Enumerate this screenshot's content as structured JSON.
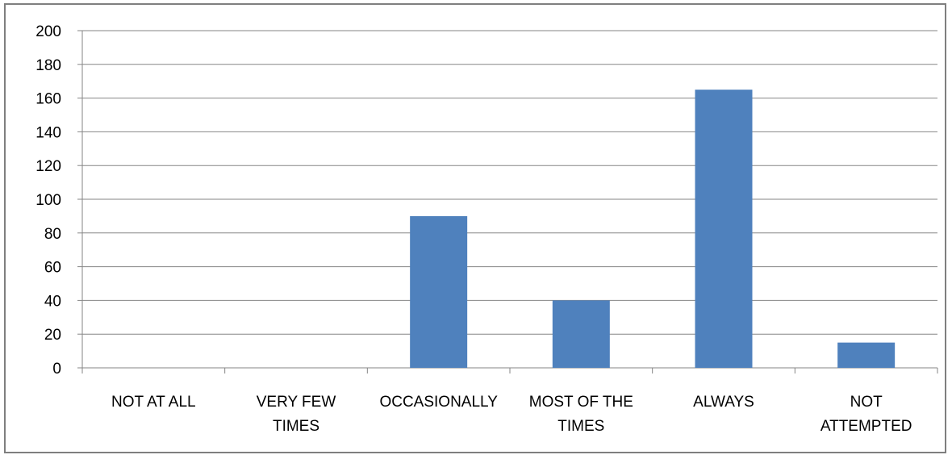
{
  "chart_data": {
    "type": "bar",
    "categories": [
      [
        "NOT AT ALL"
      ],
      [
        "VERY FEW",
        "TIMES"
      ],
      [
        "OCCASIONALLY"
      ],
      [
        "MOST OF THE",
        "TIMES"
      ],
      [
        "ALWAYS"
      ],
      [
        "NOT",
        "ATTEMPTED"
      ]
    ],
    "values": [
      0,
      0,
      90,
      40,
      165,
      15
    ],
    "ylim": [
      0,
      200
    ],
    "y_ticks": [
      "0",
      "20",
      "40",
      "60",
      "80",
      "100",
      "120",
      "140",
      "160",
      "180",
      "200"
    ],
    "grid": true,
    "legend": "none",
    "bar_color": "#4f81bd",
    "grid_color": "#868686"
  }
}
